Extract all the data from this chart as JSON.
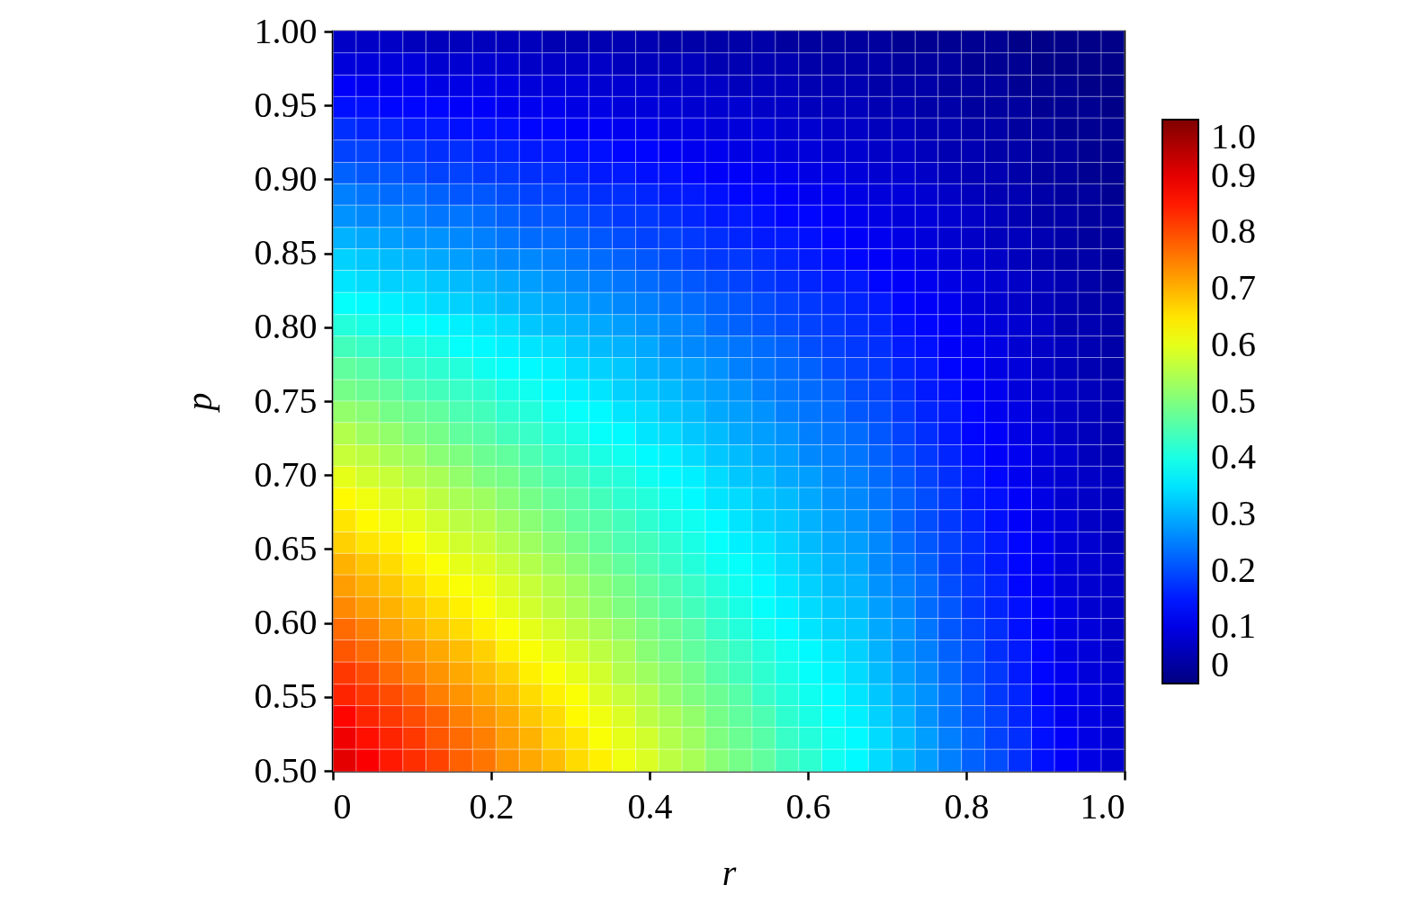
{
  "chart_data": {
    "type": "heatmap",
    "xlabel": "r",
    "ylabel": "p",
    "x": [
      0.015,
      0.044,
      0.074,
      0.103,
      0.132,
      0.162,
      0.191,
      0.221,
      0.25,
      0.279,
      0.309,
      0.338,
      0.368,
      0.397,
      0.426,
      0.456,
      0.485,
      0.515,
      0.544,
      0.574,
      0.603,
      0.632,
      0.662,
      0.691,
      0.721,
      0.75,
      0.779,
      0.809,
      0.838,
      0.868,
      0.897,
      0.926,
      0.956,
      0.985
    ],
    "y": [
      0.993,
      0.978,
      0.963,
      0.949,
      0.934,
      0.919,
      0.904,
      0.89,
      0.875,
      0.86,
      0.846,
      0.831,
      0.816,
      0.801,
      0.787,
      0.772,
      0.757,
      0.743,
      0.728,
      0.713,
      0.699,
      0.684,
      0.669,
      0.654,
      0.64,
      0.625,
      0.61,
      0.596,
      0.581,
      0.566,
      0.551,
      0.537,
      0.522,
      0.507
    ],
    "xlim": [
      0,
      1
    ],
    "xticks": [
      0,
      0.2,
      0.4,
      0.6,
      0.8,
      {
        "value": 1,
        "label": "1.0"
      }
    ],
    "ylim": [
      0.5,
      1
    ],
    "yticks": [
      {
        "value": 0.5,
        "label": "0.50"
      },
      0.55,
      {
        "value": 0.6,
        "label": "0.60"
      },
      0.65,
      {
        "value": 0.7,
        "label": "0.70"
      },
      0.75,
      {
        "value": 0.8,
        "label": "0.80"
      },
      0.85,
      {
        "value": 0.9,
        "label": "0.90"
      },
      0.95,
      {
        "value": 1,
        "label": "1.00"
      }
    ],
    "clim": [
      0,
      1
    ],
    "cticks": [
      0,
      0.1,
      0.2,
      0.3,
      0.4,
      0.5,
      0.6,
      0.7,
      0.8,
      0.9,
      {
        "value": 1,
        "label": "1.0"
      }
    ],
    "cells": [
      [
        0.07,
        0.07,
        0.07,
        0.06,
        0.06,
        0.06,
        0.06,
        0.06,
        0.06,
        0.05,
        0.05,
        0.05,
        0.05,
        0.05,
        0.04,
        0.04,
        0.04,
        0.04,
        0.04,
        0.03,
        0.03,
        0.03,
        0.03,
        0.03,
        0.02,
        0.02,
        0.02,
        0.02,
        0.02,
        0.01,
        0.01,
        0.01,
        0.01,
        0.01
      ],
      [
        0.09,
        0.09,
        0.09,
        0.09,
        0.08,
        0.08,
        0.08,
        0.08,
        0.07,
        0.07,
        0.07,
        0.07,
        0.06,
        0.06,
        0.06,
        0.06,
        0.05,
        0.05,
        0.05,
        0.05,
        0.04,
        0.04,
        0.04,
        0.04,
        0.03,
        0.03,
        0.03,
        0.02,
        0.02,
        0.02,
        0.01,
        0.01,
        0.01,
        0.01
      ],
      [
        0.12,
        0.11,
        0.11,
        0.11,
        0.1,
        0.1,
        0.1,
        0.1,
        0.09,
        0.09,
        0.09,
        0.08,
        0.08,
        0.08,
        0.07,
        0.07,
        0.07,
        0.06,
        0.06,
        0.06,
        0.05,
        0.05,
        0.05,
        0.04,
        0.04,
        0.04,
        0.03,
        0.03,
        0.03,
        0.02,
        0.02,
        0.02,
        0.01,
        0.01
      ],
      [
        0.14,
        0.14,
        0.13,
        0.13,
        0.13,
        0.12,
        0.12,
        0.11,
        0.11,
        0.11,
        0.1,
        0.1,
        0.09,
        0.09,
        0.09,
        0.08,
        0.08,
        0.08,
        0.07,
        0.07,
        0.06,
        0.06,
        0.06,
        0.05,
        0.05,
        0.04,
        0.04,
        0.03,
        0.03,
        0.03,
        0.02,
        0.02,
        0.02,
        0.01
      ],
      [
        0.17,
        0.16,
        0.16,
        0.15,
        0.15,
        0.14,
        0.14,
        0.14,
        0.13,
        0.13,
        0.12,
        0.12,
        0.11,
        0.11,
        0.1,
        0.1,
        0.09,
        0.09,
        0.09,
        0.08,
        0.08,
        0.07,
        0.07,
        0.06,
        0.06,
        0.05,
        0.05,
        0.04,
        0.04,
        0.03,
        0.03,
        0.02,
        0.02,
        0.02
      ],
      [
        0.19,
        0.19,
        0.18,
        0.18,
        0.17,
        0.17,
        0.16,
        0.16,
        0.15,
        0.15,
        0.14,
        0.14,
        0.13,
        0.13,
        0.12,
        0.11,
        0.11,
        0.1,
        0.1,
        0.09,
        0.09,
        0.08,
        0.08,
        0.07,
        0.07,
        0.06,
        0.05,
        0.05,
        0.04,
        0.04,
        0.03,
        0.03,
        0.02,
        0.02
      ],
      [
        0.22,
        0.21,
        0.21,
        0.2,
        0.19,
        0.19,
        0.18,
        0.18,
        0.17,
        0.17,
        0.16,
        0.15,
        0.15,
        0.14,
        0.14,
        0.13,
        0.12,
        0.12,
        0.11,
        0.11,
        0.1,
        0.1,
        0.09,
        0.08,
        0.08,
        0.07,
        0.06,
        0.05,
        0.05,
        0.04,
        0.03,
        0.03,
        0.02,
        0.02
      ],
      [
        0.25,
        0.24,
        0.23,
        0.23,
        0.22,
        0.21,
        0.21,
        0.2,
        0.19,
        0.19,
        0.18,
        0.17,
        0.17,
        0.16,
        0.15,
        0.15,
        0.14,
        0.13,
        0.13,
        0.12,
        0.11,
        0.11,
        0.1,
        0.09,
        0.09,
        0.08,
        0.07,
        0.06,
        0.05,
        0.05,
        0.04,
        0.03,
        0.03,
        0.02
      ],
      [
        0.27,
        0.26,
        0.26,
        0.25,
        0.24,
        0.24,
        0.23,
        0.22,
        0.21,
        0.21,
        0.2,
        0.19,
        0.18,
        0.18,
        0.17,
        0.16,
        0.15,
        0.15,
        0.14,
        0.13,
        0.13,
        0.12,
        0.11,
        0.1,
        0.09,
        0.09,
        0.08,
        0.07,
        0.06,
        0.05,
        0.04,
        0.04,
        0.03,
        0.03
      ],
      [
        0.3,
        0.29,
        0.28,
        0.27,
        0.27,
        0.26,
        0.25,
        0.24,
        0.23,
        0.23,
        0.22,
        0.21,
        0.2,
        0.19,
        0.19,
        0.18,
        0.17,
        0.16,
        0.15,
        0.15,
        0.14,
        0.13,
        0.12,
        0.11,
        0.1,
        0.09,
        0.08,
        0.07,
        0.06,
        0.06,
        0.05,
        0.04,
        0.03,
        0.03
      ],
      [
        0.33,
        0.32,
        0.31,
        0.3,
        0.29,
        0.28,
        0.27,
        0.26,
        0.26,
        0.25,
        0.24,
        0.23,
        0.22,
        0.21,
        0.2,
        0.19,
        0.18,
        0.18,
        0.17,
        0.16,
        0.15,
        0.14,
        0.13,
        0.12,
        0.11,
        0.1,
        0.09,
        0.08,
        0.07,
        0.06,
        0.05,
        0.04,
        0.04,
        0.03
      ],
      [
        0.35,
        0.34,
        0.33,
        0.33,
        0.32,
        0.31,
        0.3,
        0.29,
        0.28,
        0.27,
        0.26,
        0.25,
        0.24,
        0.23,
        0.22,
        0.21,
        0.2,
        0.19,
        0.18,
        0.17,
        0.16,
        0.15,
        0.15,
        0.13,
        0.12,
        0.11,
        0.1,
        0.09,
        0.08,
        0.07,
        0.06,
        0.05,
        0.04,
        0.03
      ],
      [
        0.38,
        0.37,
        0.36,
        0.35,
        0.34,
        0.33,
        0.32,
        0.31,
        0.3,
        0.29,
        0.28,
        0.27,
        0.26,
        0.25,
        0.24,
        0.23,
        0.22,
        0.21,
        0.2,
        0.19,
        0.18,
        0.17,
        0.16,
        0.15,
        0.13,
        0.12,
        0.11,
        0.09,
        0.08,
        0.07,
        0.06,
        0.05,
        0.04,
        0.04
      ],
      [
        0.41,
        0.4,
        0.39,
        0.38,
        0.37,
        0.36,
        0.35,
        0.34,
        0.32,
        0.31,
        0.3,
        0.29,
        0.28,
        0.27,
        0.26,
        0.25,
        0.23,
        0.22,
        0.21,
        0.2,
        0.19,
        0.18,
        0.17,
        0.16,
        0.14,
        0.13,
        0.12,
        0.1,
        0.09,
        0.08,
        0.07,
        0.05,
        0.05,
        0.04
      ],
      [
        0.44,
        0.43,
        0.42,
        0.41,
        0.4,
        0.38,
        0.37,
        0.36,
        0.35,
        0.34,
        0.32,
        0.31,
        0.3,
        0.29,
        0.27,
        0.26,
        0.25,
        0.24,
        0.23,
        0.22,
        0.2,
        0.19,
        0.18,
        0.17,
        0.15,
        0.14,
        0.12,
        0.11,
        0.1,
        0.08,
        0.07,
        0.06,
        0.05,
        0.04
      ],
      [
        0.47,
        0.46,
        0.44,
        0.43,
        0.42,
        0.41,
        0.39,
        0.38,
        0.37,
        0.36,
        0.34,
        0.33,
        0.32,
        0.3,
        0.29,
        0.28,
        0.27,
        0.25,
        0.24,
        0.23,
        0.22,
        0.2,
        0.19,
        0.18,
        0.16,
        0.15,
        0.13,
        0.12,
        0.1,
        0.09,
        0.07,
        0.06,
        0.05,
        0.04
      ],
      [
        0.49,
        0.48,
        0.47,
        0.45,
        0.44,
        0.43,
        0.42,
        0.4,
        0.39,
        0.37,
        0.36,
        0.35,
        0.33,
        0.32,
        0.31,
        0.29,
        0.28,
        0.27,
        0.25,
        0.24,
        0.23,
        0.22,
        0.2,
        0.19,
        0.17,
        0.15,
        0.14,
        0.12,
        0.11,
        0.09,
        0.08,
        0.07,
        0.06,
        0.05
      ],
      [
        0.52,
        0.51,
        0.49,
        0.48,
        0.47,
        0.45,
        0.44,
        0.42,
        0.41,
        0.39,
        0.38,
        0.37,
        0.35,
        0.34,
        0.32,
        0.31,
        0.29,
        0.28,
        0.27,
        0.25,
        0.24,
        0.23,
        0.21,
        0.2,
        0.18,
        0.16,
        0.15,
        0.13,
        0.11,
        0.1,
        0.08,
        0.07,
        0.06,
        0.05
      ],
      [
        0.55,
        0.53,
        0.52,
        0.5,
        0.49,
        0.47,
        0.46,
        0.44,
        0.43,
        0.41,
        0.4,
        0.38,
        0.37,
        0.35,
        0.34,
        0.32,
        0.31,
        0.29,
        0.28,
        0.27,
        0.25,
        0.24,
        0.23,
        0.21,
        0.19,
        0.17,
        0.15,
        0.13,
        0.12,
        0.1,
        0.09,
        0.07,
        0.06,
        0.05
      ],
      [
        0.57,
        0.56,
        0.54,
        0.53,
        0.51,
        0.5,
        0.48,
        0.47,
        0.45,
        0.43,
        0.42,
        0.4,
        0.39,
        0.37,
        0.36,
        0.34,
        0.32,
        0.31,
        0.29,
        0.28,
        0.26,
        0.25,
        0.24,
        0.22,
        0.2,
        0.18,
        0.16,
        0.14,
        0.12,
        0.11,
        0.09,
        0.08,
        0.06,
        0.05
      ],
      [
        0.6,
        0.58,
        0.57,
        0.55,
        0.54,
        0.52,
        0.5,
        0.49,
        0.47,
        0.45,
        0.44,
        0.42,
        0.41,
        0.39,
        0.37,
        0.36,
        0.34,
        0.32,
        0.31,
        0.29,
        0.28,
        0.26,
        0.25,
        0.23,
        0.21,
        0.19,
        0.17,
        0.15,
        0.13,
        0.11,
        0.09,
        0.08,
        0.07,
        0.06
      ],
      [
        0.63,
        0.61,
        0.59,
        0.58,
        0.56,
        0.54,
        0.53,
        0.51,
        0.49,
        0.47,
        0.46,
        0.44,
        0.42,
        0.41,
        0.39,
        0.37,
        0.35,
        0.34,
        0.32,
        0.31,
        0.29,
        0.27,
        0.26,
        0.24,
        0.22,
        0.2,
        0.18,
        0.15,
        0.14,
        0.12,
        0.1,
        0.08,
        0.07,
        0.06
      ],
      [
        0.65,
        0.63,
        0.61,
        0.6,
        0.58,
        0.56,
        0.55,
        0.53,
        0.51,
        0.49,
        0.47,
        0.46,
        0.44,
        0.42,
        0.4,
        0.39,
        0.37,
        0.35,
        0.33,
        0.32,
        0.3,
        0.28,
        0.27,
        0.25,
        0.22,
        0.2,
        0.18,
        0.16,
        0.14,
        0.12,
        0.1,
        0.09,
        0.07,
        0.06
      ],
      [
        0.67,
        0.65,
        0.64,
        0.62,
        0.6,
        0.58,
        0.57,
        0.55,
        0.53,
        0.51,
        0.49,
        0.47,
        0.45,
        0.44,
        0.42,
        0.4,
        0.38,
        0.36,
        0.35,
        0.33,
        0.31,
        0.29,
        0.28,
        0.26,
        0.23,
        0.21,
        0.19,
        0.17,
        0.15,
        0.13,
        0.11,
        0.09,
        0.08,
        0.06
      ],
      [
        0.7,
        0.68,
        0.66,
        0.64,
        0.62,
        0.6,
        0.59,
        0.57,
        0.55,
        0.53,
        0.51,
        0.49,
        0.47,
        0.45,
        0.43,
        0.41,
        0.39,
        0.38,
        0.36,
        0.34,
        0.32,
        0.3,
        0.29,
        0.26,
        0.24,
        0.22,
        0.19,
        0.17,
        0.15,
        0.13,
        0.11,
        0.09,
        0.08,
        0.07
      ],
      [
        0.72,
        0.7,
        0.68,
        0.66,
        0.64,
        0.62,
        0.61,
        0.59,
        0.57,
        0.55,
        0.53,
        0.51,
        0.49,
        0.47,
        0.45,
        0.43,
        0.41,
        0.39,
        0.37,
        0.35,
        0.33,
        0.31,
        0.3,
        0.27,
        0.25,
        0.23,
        0.2,
        0.18,
        0.16,
        0.13,
        0.11,
        0.09,
        0.08,
        0.07
      ],
      [
        0.74,
        0.72,
        0.7,
        0.68,
        0.66,
        0.64,
        0.62,
        0.6,
        0.58,
        0.56,
        0.54,
        0.52,
        0.5,
        0.48,
        0.46,
        0.44,
        0.42,
        0.4,
        0.38,
        0.36,
        0.34,
        0.32,
        0.31,
        0.28,
        0.26,
        0.23,
        0.21,
        0.18,
        0.16,
        0.14,
        0.12,
        0.1,
        0.08,
        0.07
      ],
      [
        0.77,
        0.75,
        0.72,
        0.7,
        0.68,
        0.66,
        0.64,
        0.62,
        0.6,
        0.58,
        0.56,
        0.54,
        0.52,
        0.5,
        0.48,
        0.46,
        0.43,
        0.41,
        0.39,
        0.37,
        0.35,
        0.33,
        0.32,
        0.29,
        0.27,
        0.24,
        0.21,
        0.19,
        0.17,
        0.14,
        0.12,
        0.1,
        0.09,
        0.07
      ],
      [
        0.79,
        0.77,
        0.75,
        0.73,
        0.71,
        0.69,
        0.67,
        0.64,
        0.62,
        0.6,
        0.58,
        0.56,
        0.54,
        0.51,
        0.49,
        0.47,
        0.45,
        0.43,
        0.41,
        0.39,
        0.37,
        0.35,
        0.33,
        0.3,
        0.27,
        0.25,
        0.22,
        0.2,
        0.17,
        0.15,
        0.13,
        0.1,
        0.09,
        0.07
      ],
      [
        0.82,
        0.8,
        0.77,
        0.75,
        0.73,
        0.71,
        0.69,
        0.67,
        0.64,
        0.62,
        0.6,
        0.58,
        0.55,
        0.53,
        0.51,
        0.49,
        0.46,
        0.44,
        0.42,
        0.4,
        0.38,
        0.36,
        0.34,
        0.31,
        0.28,
        0.26,
        0.23,
        0.2,
        0.18,
        0.15,
        0.13,
        0.11,
        0.09,
        0.08
      ],
      [
        0.84,
        0.82,
        0.8,
        0.78,
        0.75,
        0.73,
        0.71,
        0.69,
        0.66,
        0.64,
        0.62,
        0.59,
        0.57,
        0.55,
        0.52,
        0.5,
        0.48,
        0.46,
        0.43,
        0.41,
        0.39,
        0.37,
        0.35,
        0.32,
        0.29,
        0.27,
        0.24,
        0.21,
        0.18,
        0.16,
        0.13,
        0.11,
        0.1,
        0.08
      ],
      [
        0.87,
        0.84,
        0.82,
        0.8,
        0.78,
        0.75,
        0.73,
        0.71,
        0.68,
        0.66,
        0.63,
        0.61,
        0.59,
        0.56,
        0.54,
        0.52,
        0.49,
        0.47,
        0.45,
        0.42,
        0.4,
        0.38,
        0.36,
        0.33,
        0.3,
        0.27,
        0.24,
        0.21,
        0.19,
        0.16,
        0.14,
        0.11,
        0.1,
        0.08
      ],
      [
        0.89,
        0.86,
        0.84,
        0.82,
        0.79,
        0.77,
        0.75,
        0.72,
        0.7,
        0.67,
        0.65,
        0.62,
        0.6,
        0.58,
        0.55,
        0.53,
        0.5,
        0.48,
        0.46,
        0.43,
        0.41,
        0.39,
        0.37,
        0.34,
        0.31,
        0.28,
        0.25,
        0.22,
        0.19,
        0.17,
        0.14,
        0.12,
        0.1,
        0.08
      ],
      [
        0.9,
        0.88,
        0.85,
        0.83,
        0.81,
        0.78,
        0.76,
        0.73,
        0.71,
        0.69,
        0.66,
        0.64,
        0.61,
        0.59,
        0.56,
        0.54,
        0.51,
        0.49,
        0.47,
        0.44,
        0.42,
        0.39,
        0.37,
        0.34,
        0.31,
        0.28,
        0.25,
        0.22,
        0.2,
        0.17,
        0.14,
        0.12,
        0.1,
        0.08
      ]
    ]
  }
}
